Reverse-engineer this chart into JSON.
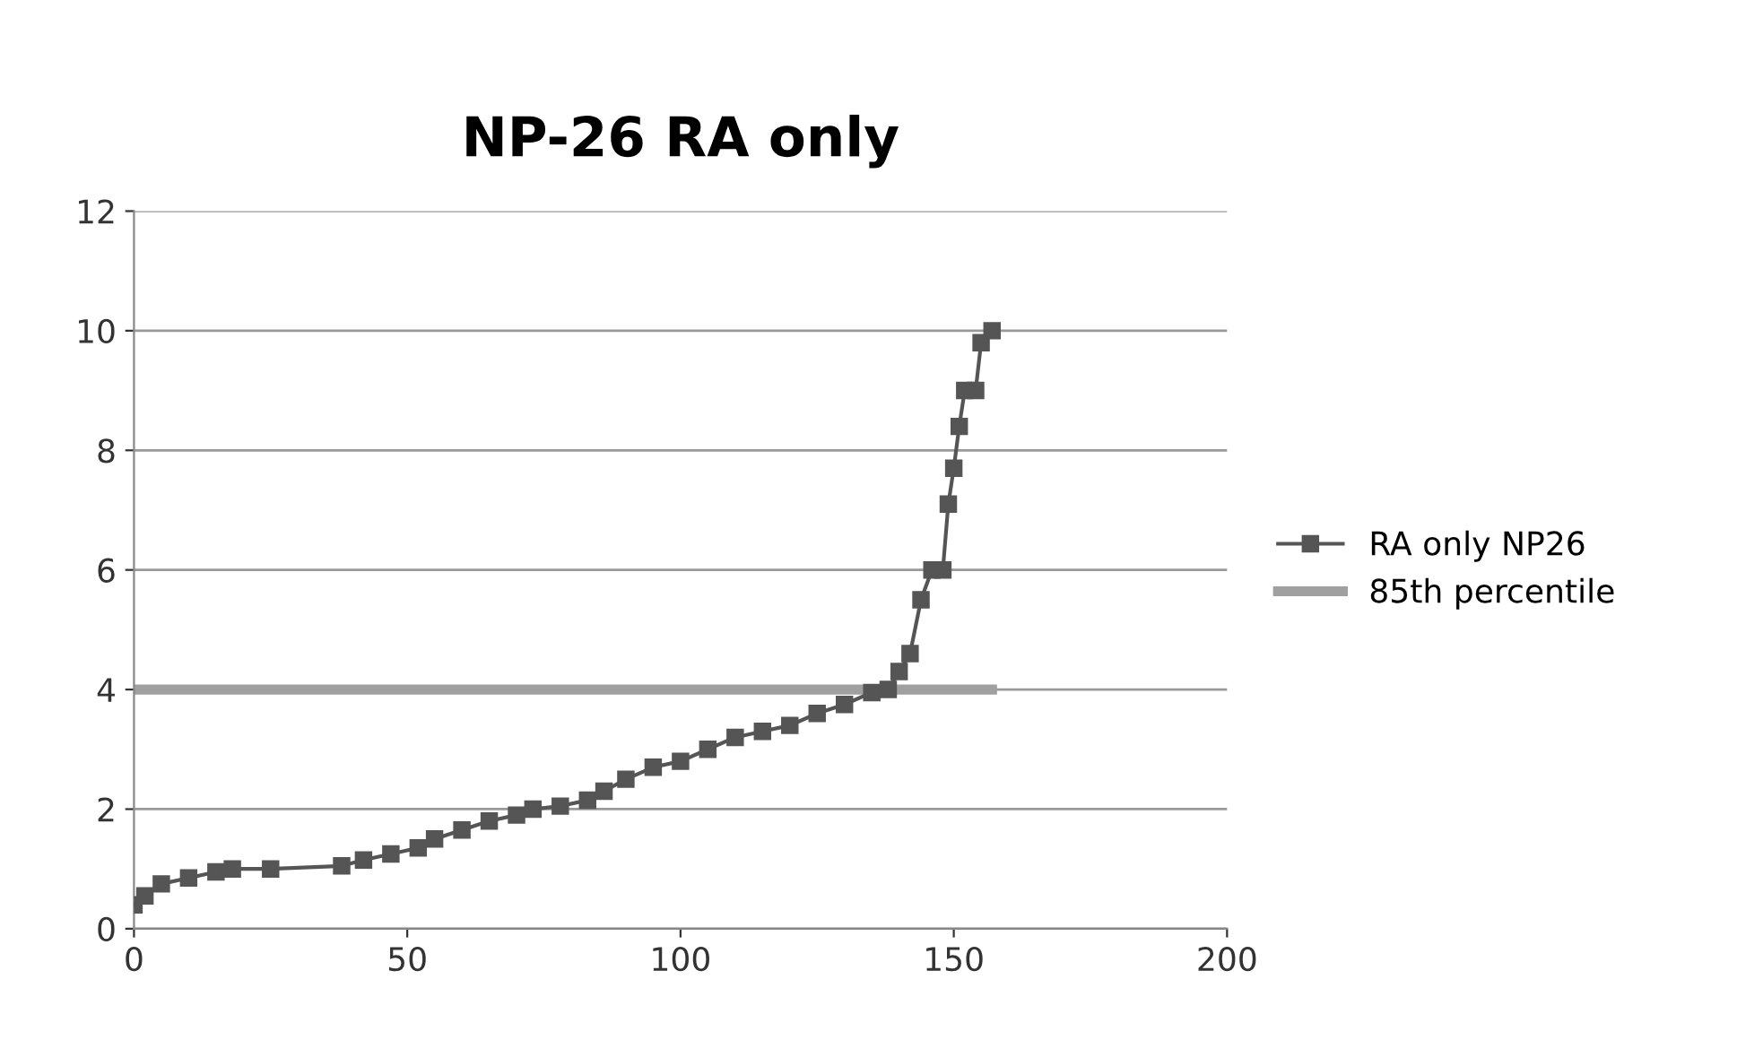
{
  "chart_data": {
    "type": "line",
    "title": "NP-26 RA only",
    "xlim": [
      0,
      200
    ],
    "xticks": [
      0,
      50,
      100,
      150,
      200
    ],
    "ylim": [
      0,
      12
    ],
    "yticks": [
      0,
      2,
      4,
      6,
      8,
      10,
      12
    ],
    "grid": "y",
    "legend": "right",
    "marker": "square",
    "series": [
      {
        "name": "RA only NP26",
        "color": "#555555",
        "x": [
          0,
          2,
          5,
          10,
          15,
          18,
          25,
          38,
          42,
          47,
          52,
          55,
          60,
          65,
          70,
          73,
          78,
          83,
          86,
          90,
          95,
          100,
          105,
          110,
          115,
          120,
          125,
          130,
          135,
          138,
          140,
          142,
          144,
          146,
          148,
          149,
          150,
          151,
          152,
          154,
          155,
          157
        ],
        "values": [
          0.4,
          0.55,
          0.75,
          0.85,
          0.95,
          1.0,
          1.0,
          1.05,
          1.15,
          1.25,
          1.35,
          1.5,
          1.65,
          1.8,
          1.9,
          2.0,
          2.05,
          2.15,
          2.3,
          2.5,
          2.7,
          2.8,
          3.0,
          3.2,
          3.3,
          3.4,
          3.6,
          3.75,
          3.95,
          4.0,
          4.3,
          4.6,
          5.5,
          6.0,
          6.0,
          7.1,
          7.7,
          8.4,
          9.0,
          9.0,
          9.8,
          10.0
        ]
      },
      {
        "name": "85th percentile",
        "color": "#a0a0a0",
        "marker": "none",
        "x": [
          0,
          157
        ],
        "values": [
          4,
          4
        ]
      }
    ]
  }
}
